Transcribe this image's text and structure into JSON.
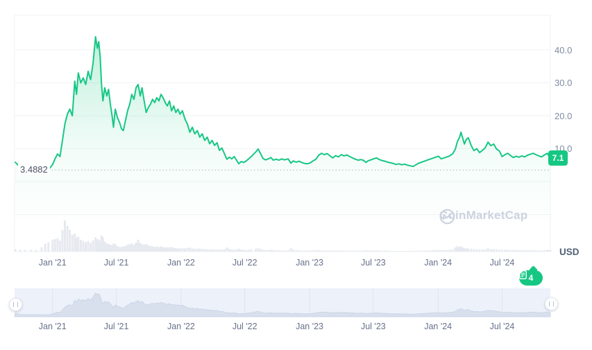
{
  "widget": {
    "currency_label": "USD",
    "watermark_text": "CoinMarketCap",
    "min_price_label": "3.4882",
    "current_price_label": "7.1",
    "news_badge_count": "4"
  },
  "chart_data": {
    "type": "line",
    "title": "Cryptocurrency price history with volume and range selector (CoinMarketCap style)",
    "unit": "USD",
    "x_range": [
      "2020-09-15",
      "2024-11-15"
    ],
    "y_axis": {
      "ticks": [
        {
          "label": "40.0",
          "value": 40
        },
        {
          "label": "30.0",
          "value": 30
        },
        {
          "label": "20.0",
          "value": 20
        },
        {
          "label": "10.0",
          "value": 10
        }
      ],
      "extra_gridline_values": [
        0,
        -10
      ],
      "min_annotation_value": 3.4882,
      "last_value": 7.1
    },
    "x_ticks": [
      {
        "label": "Jan '21",
        "date": "2021-01-01"
      },
      {
        "label": "Jul '21",
        "date": "2021-07-01"
      },
      {
        "label": "Jan '22",
        "date": "2022-01-01"
      },
      {
        "label": "Jul '22",
        "date": "2022-07-01"
      },
      {
        "label": "Jan '23",
        "date": "2023-01-01"
      },
      {
        "label": "Jul '23",
        "date": "2023-07-01"
      },
      {
        "label": "Jan '24",
        "date": "2024-01-01"
      },
      {
        "label": "Jul '24",
        "date": "2024-07-01"
      }
    ],
    "points_format": [
      "date",
      "price_usd",
      "volume_relative_0_100"
    ],
    "points": [
      [
        "2020-09-17",
        5.9,
        8
      ],
      [
        "2020-10-01",
        4.3,
        6
      ],
      [
        "2020-10-15",
        3.7,
        5
      ],
      [
        "2020-11-01",
        4.1,
        6
      ],
      [
        "2020-11-15",
        3.8,
        5
      ],
      [
        "2020-12-01",
        3.9,
        14
      ],
      [
        "2020-12-11",
        3.6,
        25
      ],
      [
        "2020-12-20",
        3.4882,
        30
      ],
      [
        "2021-01-01",
        5.2,
        38
      ],
      [
        "2021-01-08",
        6.9,
        40
      ],
      [
        "2021-01-15",
        8.4,
        42
      ],
      [
        "2021-01-22",
        7.6,
        35
      ],
      [
        "2021-01-29",
        12.5,
        70
      ],
      [
        "2021-02-05",
        17.5,
        100
      ],
      [
        "2021-02-12",
        20.5,
        82
      ],
      [
        "2021-02-19",
        22.0,
        70
      ],
      [
        "2021-02-26",
        20.0,
        54
      ],
      [
        "2021-03-05",
        30.5,
        58
      ],
      [
        "2021-03-10",
        26.5,
        44
      ],
      [
        "2021-03-15",
        33.0,
        48
      ],
      [
        "2021-03-22",
        30.0,
        38
      ],
      [
        "2021-03-29",
        31.5,
        34
      ],
      [
        "2021-04-05",
        29.5,
        30
      ],
      [
        "2021-04-12",
        33.5,
        34
      ],
      [
        "2021-04-19",
        31.0,
        28
      ],
      [
        "2021-04-26",
        36.0,
        36
      ],
      [
        "2021-05-03",
        44.0,
        46
      ],
      [
        "2021-05-08",
        40.5,
        40
      ],
      [
        "2021-05-12",
        42.5,
        38
      ],
      [
        "2021-05-16",
        38.0,
        34
      ],
      [
        "2021-05-20",
        29.5,
        52
      ],
      [
        "2021-05-24",
        24.5,
        46
      ],
      [
        "2021-05-29",
        28.5,
        32
      ],
      [
        "2021-06-04",
        26.0,
        26
      ],
      [
        "2021-06-09",
        28.0,
        24
      ],
      [
        "2021-06-14",
        23.5,
        22
      ],
      [
        "2021-06-19",
        20.0,
        20
      ],
      [
        "2021-06-23",
        16.5,
        26
      ],
      [
        "2021-06-28",
        22.0,
        24
      ],
      [
        "2021-07-04",
        19.5,
        18
      ],
      [
        "2021-07-10",
        18.0,
        15
      ],
      [
        "2021-07-16",
        16.0,
        14
      ],
      [
        "2021-07-21",
        15.5,
        16
      ],
      [
        "2021-07-27",
        18.5,
        18
      ],
      [
        "2021-08-02",
        21.5,
        22
      ],
      [
        "2021-08-08",
        23.5,
        24
      ],
      [
        "2021-08-14",
        26.5,
        26
      ],
      [
        "2021-08-20",
        25.0,
        22
      ],
      [
        "2021-08-26",
        28.5,
        28
      ],
      [
        "2021-09-01",
        29.5,
        38
      ],
      [
        "2021-09-07",
        26.0,
        28
      ],
      [
        "2021-09-12",
        28.5,
        24
      ],
      [
        "2021-09-18",
        24.5,
        22
      ],
      [
        "2021-09-24",
        21.0,
        24
      ],
      [
        "2021-09-30",
        22.5,
        20
      ],
      [
        "2021-10-06",
        23.5,
        18
      ],
      [
        "2021-10-12",
        25.0,
        17
      ],
      [
        "2021-10-18",
        24.0,
        15
      ],
      [
        "2021-10-24",
        25.5,
        16
      ],
      [
        "2021-10-30",
        24.5,
        14
      ],
      [
        "2021-11-05",
        26.5,
        17
      ],
      [
        "2021-11-11",
        25.5,
        15
      ],
      [
        "2021-11-17",
        24.0,
        13
      ],
      [
        "2021-11-23",
        23.0,
        14
      ],
      [
        "2021-11-29",
        24.5,
        13
      ],
      [
        "2021-12-05",
        21.5,
        15
      ],
      [
        "2021-12-11",
        23.0,
        12
      ],
      [
        "2021-12-17",
        21.0,
        11
      ],
      [
        "2021-12-23",
        22.0,
        10
      ],
      [
        "2021-12-29",
        20.5,
        10
      ],
      [
        "2022-01-05",
        21.5,
        11
      ],
      [
        "2022-01-12",
        19.0,
        10
      ],
      [
        "2022-01-19",
        17.5,
        12
      ],
      [
        "2022-01-26",
        15.0,
        13
      ],
      [
        "2022-02-02",
        16.5,
        10
      ],
      [
        "2022-02-09",
        14.5,
        9
      ],
      [
        "2022-02-16",
        15.5,
        9
      ],
      [
        "2022-02-23",
        13.5,
        9
      ],
      [
        "2022-03-02",
        14.5,
        8
      ],
      [
        "2022-03-09",
        12.5,
        8
      ],
      [
        "2022-03-16",
        13.5,
        7
      ],
      [
        "2022-03-23",
        11.5,
        7
      ],
      [
        "2022-03-30",
        12.5,
        7
      ],
      [
        "2022-04-06",
        11.0,
        7
      ],
      [
        "2022-04-13",
        11.8,
        6
      ],
      [
        "2022-04-20",
        9.5,
        7
      ],
      [
        "2022-04-27",
        10.2,
        6
      ],
      [
        "2022-05-04",
        8.5,
        8
      ],
      [
        "2022-05-11",
        6.8,
        13
      ],
      [
        "2022-05-18",
        7.4,
        9
      ],
      [
        "2022-05-25",
        6.9,
        7
      ],
      [
        "2022-06-01",
        7.6,
        6
      ],
      [
        "2022-06-08",
        6.4,
        7
      ],
      [
        "2022-06-14",
        5.4,
        9
      ],
      [
        "2022-06-21",
        6.1,
        7
      ],
      [
        "2022-06-28",
        5.8,
        6
      ],
      [
        "2022-07-05",
        6.3,
        5
      ],
      [
        "2022-07-12",
        6.9,
        6
      ],
      [
        "2022-07-19",
        7.6,
        7
      ],
      [
        "2022-08-01",
        9.0,
        9
      ],
      [
        "2022-08-08",
        9.9,
        11
      ],
      [
        "2022-08-15",
        8.4,
        8
      ],
      [
        "2022-08-22",
        7.0,
        6
      ],
      [
        "2022-08-29",
        6.6,
        5
      ],
      [
        "2022-09-06",
        6.9,
        5
      ],
      [
        "2022-09-13",
        7.3,
        6
      ],
      [
        "2022-09-20",
        6.5,
        5
      ],
      [
        "2022-09-28",
        6.8,
        4
      ],
      [
        "2022-10-06",
        6.5,
        4
      ],
      [
        "2022-10-14",
        6.9,
        4
      ],
      [
        "2022-10-22",
        6.6,
        4
      ],
      [
        "2022-11-01",
        6.9,
        5
      ],
      [
        "2022-11-09",
        5.6,
        11
      ],
      [
        "2022-11-16",
        6.3,
        6
      ],
      [
        "2022-11-24",
        5.9,
        4
      ],
      [
        "2022-12-02",
        6.2,
        4
      ],
      [
        "2022-12-10",
        5.8,
        3
      ],
      [
        "2022-12-18",
        5.5,
        3
      ],
      [
        "2022-12-26",
        5.4,
        3
      ],
      [
        "2023-01-03",
        5.7,
        4
      ],
      [
        "2023-01-11",
        6.3,
        4
      ],
      [
        "2023-01-19",
        6.8,
        5
      ],
      [
        "2023-01-27",
        8.0,
        5
      ],
      [
        "2023-02-04",
        8.6,
        4
      ],
      [
        "2023-02-12",
        8.2,
        4
      ],
      [
        "2023-02-20",
        8.5,
        4
      ],
      [
        "2023-02-28",
        7.8,
        4
      ],
      [
        "2023-03-08",
        7.2,
        4
      ],
      [
        "2023-03-16",
        7.9,
        4
      ],
      [
        "2023-03-24",
        7.5,
        3
      ],
      [
        "2023-04-01",
        8.2,
        4
      ],
      [
        "2023-04-09",
        7.8,
        3
      ],
      [
        "2023-04-17",
        8.1,
        3
      ],
      [
        "2023-04-25",
        7.6,
        3
      ],
      [
        "2023-05-03",
        7.2,
        3
      ],
      [
        "2023-05-11",
        6.8,
        3
      ],
      [
        "2023-05-19",
        6.5,
        3
      ],
      [
        "2023-05-27",
        6.7,
        3
      ],
      [
        "2023-06-04",
        6.4,
        3
      ],
      [
        "2023-06-10",
        5.8,
        4
      ],
      [
        "2023-06-16",
        6.3,
        3
      ],
      [
        "2023-06-24",
        6.6,
        3
      ],
      [
        "2023-07-02",
        6.9,
        4
      ],
      [
        "2023-07-10",
        7.2,
        4
      ],
      [
        "2023-07-18",
        6.7,
        3
      ],
      [
        "2023-07-26",
        6.4,
        3
      ],
      [
        "2023-08-03",
        6.2,
        3
      ],
      [
        "2023-08-11",
        5.9,
        3
      ],
      [
        "2023-08-19",
        5.7,
        2
      ],
      [
        "2023-08-27",
        5.5,
        2
      ],
      [
        "2023-09-04",
        5.2,
        2
      ],
      [
        "2023-09-12",
        5.4,
        2
      ],
      [
        "2023-09-20",
        5.1,
        2
      ],
      [
        "2023-09-28",
        5.3,
        2
      ],
      [
        "2023-10-06",
        5.0,
        2
      ],
      [
        "2023-10-14",
        4.8,
        2
      ],
      [
        "2023-10-22",
        4.6,
        2
      ],
      [
        "2023-10-30",
        5.1,
        3
      ],
      [
        "2023-11-07",
        5.6,
        3
      ],
      [
        "2023-11-15",
        5.9,
        3
      ],
      [
        "2023-11-23",
        6.2,
        4
      ],
      [
        "2023-12-01",
        6.5,
        4
      ],
      [
        "2023-12-09",
        6.8,
        4
      ],
      [
        "2023-12-17",
        7.1,
        5
      ],
      [
        "2023-12-25",
        7.4,
        5
      ],
      [
        "2024-01-02",
        7.7,
        6
      ],
      [
        "2024-01-10",
        6.9,
        5
      ],
      [
        "2024-01-18",
        7.2,
        5
      ],
      [
        "2024-01-26",
        7.5,
        5
      ],
      [
        "2024-02-03",
        7.8,
        6
      ],
      [
        "2024-02-11",
        8.4,
        7
      ],
      [
        "2024-02-19",
        9.8,
        13
      ],
      [
        "2024-02-25",
        12.2,
        18
      ],
      [
        "2024-03-02",
        13.4,
        15
      ],
      [
        "2024-03-06",
        15.0,
        17
      ],
      [
        "2024-03-11",
        13.2,
        13
      ],
      [
        "2024-03-16",
        11.4,
        11
      ],
      [
        "2024-03-21",
        12.8,
        10
      ],
      [
        "2024-03-27",
        13.3,
        10
      ],
      [
        "2024-04-04",
        11.0,
        9
      ],
      [
        "2024-04-12",
        9.4,
        8
      ],
      [
        "2024-04-20",
        10.0,
        7
      ],
      [
        "2024-04-28",
        8.8,
        7
      ],
      [
        "2024-05-06",
        9.5,
        7
      ],
      [
        "2024-05-14",
        10.3,
        7
      ],
      [
        "2024-05-22",
        12.0,
        11
      ],
      [
        "2024-05-30",
        10.9,
        8
      ],
      [
        "2024-06-07",
        11.4,
        8
      ],
      [
        "2024-06-15",
        9.9,
        7
      ],
      [
        "2024-06-23",
        9.3,
        6
      ],
      [
        "2024-07-01",
        7.6,
        6
      ],
      [
        "2024-07-09",
        8.2,
        6
      ],
      [
        "2024-07-17",
        8.6,
        6
      ],
      [
        "2024-07-25",
        7.9,
        5
      ],
      [
        "2024-08-02",
        7.3,
        6
      ],
      [
        "2024-08-10",
        7.7,
        5
      ],
      [
        "2024-08-18",
        7.4,
        5
      ],
      [
        "2024-08-26",
        7.8,
        5
      ],
      [
        "2024-09-03",
        7.5,
        5
      ],
      [
        "2024-09-11",
        8.0,
        5
      ],
      [
        "2024-09-19",
        8.3,
        5
      ],
      [
        "2024-09-27",
        8.6,
        5
      ],
      [
        "2024-10-05",
        8.2,
        5
      ],
      [
        "2024-10-13",
        7.8,
        4
      ],
      [
        "2024-10-21",
        7.5,
        4
      ],
      [
        "2024-10-29",
        8.1,
        5
      ],
      [
        "2024-11-06",
        8.6,
        6
      ],
      [
        "2024-11-12",
        7.6,
        5
      ],
      [
        "2024-11-15",
        7.1,
        5
      ]
    ],
    "colors": {
      "line": "#16c784",
      "area_top": "rgba(22,199,132,0.26)",
      "volume_bar": "#e6e9ef",
      "badge": "#16c784",
      "gridline": "#f0f2f6",
      "border": "#edf0f4",
      "dotted_min_line": "#a8b1c2",
      "brush_bg": "#edf1fa",
      "brush_fill": "#d8dfed",
      "brush_gridline": "#dfe4f2",
      "watermark": "#ccd3df"
    },
    "layout_hints": {
      "grid": "horizontal-only",
      "legend": "none",
      "y_axis_side": "right",
      "volume_panel": "bottom of main plot",
      "brush": "full range selected"
    }
  }
}
